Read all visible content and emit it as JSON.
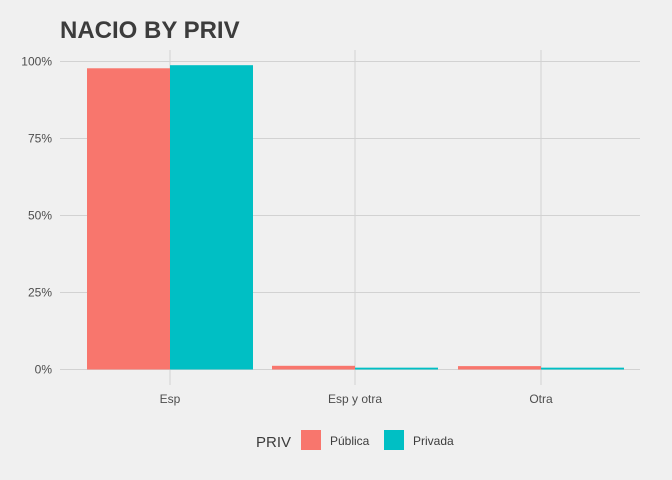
{
  "chart_data": {
    "type": "bar",
    "title": "NACIO BY PRIV",
    "categories": [
      "Esp",
      "Esp y otra",
      "Otra"
    ],
    "series": [
      {
        "name": "Pública",
        "color": "#F8766D",
        "values": [
          0.978,
          0.012,
          0.011
        ]
      },
      {
        "name": "Privada",
        "color": "#00BFC4",
        "values": [
          0.988,
          0.006,
          0.006
        ]
      }
    ],
    "ylim": [
      0,
      1
    ],
    "yticks": [
      0,
      0.25,
      0.5,
      0.75,
      1
    ],
    "ytick_labels": [
      "0%",
      "25%",
      "50%",
      "75%",
      "100%"
    ],
    "grid": true,
    "legend": {
      "title": "PRIV",
      "position": "bottom"
    }
  }
}
